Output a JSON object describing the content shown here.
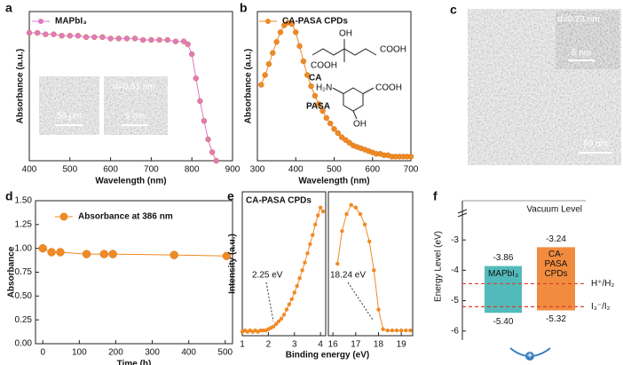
{
  "chart_data": [
    {
      "type": "line",
      "panel": "a",
      "xlabel": "Wavelength (nm)",
      "ylabel": "Absorbance (a.u.)",
      "xlim": [
        400,
        900
      ],
      "xticks": [
        400,
        500,
        600,
        700,
        800,
        900
      ],
      "ylim": [
        0,
        1.05
      ],
      "x": [
        400,
        420,
        440,
        460,
        480,
        500,
        520,
        540,
        560,
        580,
        600,
        620,
        640,
        660,
        680,
        700,
        720,
        740,
        760,
        780,
        790,
        800,
        810,
        820,
        830,
        840,
        850,
        860
      ],
      "series": [
        {
          "name": "MAPbI₃",
          "color": "#e07ac0",
          "values": [
            0.9,
            0.9,
            0.89,
            0.89,
            0.88,
            0.88,
            0.88,
            0.87,
            0.87,
            0.87,
            0.86,
            0.86,
            0.86,
            0.86,
            0.85,
            0.85,
            0.85,
            0.85,
            0.84,
            0.84,
            0.82,
            0.75,
            0.58,
            0.42,
            0.28,
            0.15,
            0.06,
            0.0
          ]
        }
      ],
      "annotations": [
        "50 μm",
        "d=0.31 nm",
        "5 nm"
      ]
    },
    {
      "type": "line",
      "panel": "b",
      "xlabel": "Wavelength (nm)",
      "ylabel": "Absorbance (a.u.)",
      "xlim": [
        300,
        700
      ],
      "xticks": [
        300,
        400,
        500,
        600,
        700
      ],
      "ylim": [
        0,
        1.08
      ],
      "x": [
        310,
        320,
        330,
        340,
        350,
        360,
        370,
        380,
        390,
        400,
        410,
        420,
        430,
        440,
        450,
        460,
        470,
        480,
        490,
        500,
        510,
        520,
        530,
        540,
        550,
        560,
        570,
        580,
        590,
        600,
        610,
        620,
        630,
        640,
        650,
        660,
        670,
        680,
        690,
        700
      ],
      "series": [
        {
          "name": "CA-PASA CPDs",
          "color": "#f08a24",
          "values": [
            0.55,
            0.62,
            0.7,
            0.78,
            0.86,
            0.93,
            0.98,
            1.0,
            0.99,
            0.93,
            0.83,
            0.72,
            0.62,
            0.54,
            0.47,
            0.41,
            0.36,
            0.31,
            0.27,
            0.23,
            0.2,
            0.17,
            0.15,
            0.13,
            0.11,
            0.1,
            0.09,
            0.08,
            0.07,
            0.06,
            0.05,
            0.05,
            0.04,
            0.04,
            0.03,
            0.03,
            0.03,
            0.03,
            0.03,
            0.03
          ]
        }
      ],
      "annotations": [
        "OH",
        "COOH",
        "COOH",
        "CA",
        "H₂N",
        "COOH",
        "OH",
        "PASA"
      ]
    },
    {
      "type": "line",
      "panel": "d",
      "xlabel": "Time (h)",
      "ylabel": "Absorbance",
      "xlim": [
        -20,
        520
      ],
      "xticks": [
        0,
        100,
        200,
        300,
        400,
        500
      ],
      "ylim": [
        0,
        1.5
      ],
      "yticks": [
        {
          "value": 0,
          "label": "0.00"
        },
        {
          "value": 0.25,
          "label": "0.25"
        },
        {
          "value": 0.5,
          "label": "0.50"
        },
        {
          "value": 0.75,
          "label": "0.75"
        },
        {
          "value": 1.0,
          "label": "1.00"
        },
        {
          "value": 1.25,
          "label": "1.25"
        },
        {
          "value": 1.5,
          "label": "1.50"
        }
      ],
      "x": [
        0,
        24,
        48,
        120,
        168,
        192,
        360,
        504
      ],
      "series": [
        {
          "name": "Absorbance at 386 nm",
          "color": "#f08a24",
          "values": [
            1.0,
            0.96,
            0.96,
            0.94,
            0.94,
            0.94,
            0.93,
            0.92
          ]
        }
      ]
    },
    {
      "type": "split-line",
      "panel": "e",
      "title": "CA-PASA CPDs",
      "xlabel": "Binding energy (eV)",
      "ylabel": "Intensity (a.u.)",
      "color": "#f08a24",
      "ylim": [
        0,
        1.1
      ],
      "segments": [
        {
          "xlim": [
            1,
            4.2
          ],
          "xticks": [
            1,
            2,
            3,
            4
          ],
          "x": [
            1.0,
            1.1,
            1.2,
            1.3,
            1.4,
            1.5,
            1.6,
            1.7,
            1.8,
            1.9,
            2.0,
            2.1,
            2.2,
            2.3,
            2.4,
            2.5,
            2.6,
            2.7,
            2.8,
            2.9,
            3.0,
            3.1,
            3.2,
            3.3,
            3.4,
            3.5,
            3.6,
            3.7,
            3.8,
            3.9,
            4.0,
            4.1
          ],
          "values": [
            0.03,
            0.04,
            0.03,
            0.04,
            0.03,
            0.04,
            0.03,
            0.04,
            0.04,
            0.04,
            0.05,
            0.06,
            0.07,
            0.09,
            0.11,
            0.13,
            0.16,
            0.2,
            0.24,
            0.28,
            0.33,
            0.38,
            0.44,
            0.5,
            0.56,
            0.63,
            0.7,
            0.77,
            0.85,
            0.92,
            0.98,
            0.95
          ]
        },
        {
          "xlim": [
            15.8,
            19.5
          ],
          "xticks": [
            16,
            17,
            18,
            19
          ],
          "x": [
            16.2,
            16.4,
            16.6,
            16.8,
            17.0,
            17.2,
            17.4,
            17.6,
            17.8,
            18.0,
            18.2,
            18.4,
            18.6,
            18.8,
            19.0,
            19.2,
            19.4
          ],
          "values": [
            0.55,
            0.8,
            0.93,
            1.0,
            0.98,
            0.93,
            0.85,
            0.72,
            0.5,
            0.2,
            0.05,
            0.04,
            0.04,
            0.04,
            0.04,
            0.04,
            0.04
          ]
        }
      ],
      "annotations": [
        "2.25 eV",
        "18.24 eV"
      ]
    },
    {
      "type": "energy-level",
      "panel": "f",
      "ylabel": "Energy Level (eV)",
      "top_label": "Vacuum Level",
      "ylim": [
        -6.3,
        -2.0
      ],
      "yticks": [
        -3,
        -4,
        -5,
        -6
      ],
      "series": [
        {
          "name": "MAPbI₃",
          "color": "#3fb3b3",
          "values": [
            -5.4,
            -3.86
          ],
          "value_labels": [
            "-5.40",
            "-3.86"
          ]
        },
        {
          "name": "CA-PASA CPDs",
          "color": "#f07f2a",
          "values": [
            -5.32,
            -3.24
          ],
          "value_labels": [
            "-5.32",
            "-3.24"
          ]
        }
      ],
      "levels": [
        {
          "name": "H⁺/H₂",
          "value": -4.44
        },
        {
          "name": "I₃⁻/I₂",
          "value": -5.2
        }
      ],
      "level_color": "#d8402a"
    }
  ],
  "tem_image": {
    "panel": "c",
    "labels": [
      "d=0.23 nm",
      "5 nm",
      "50 nm"
    ]
  }
}
